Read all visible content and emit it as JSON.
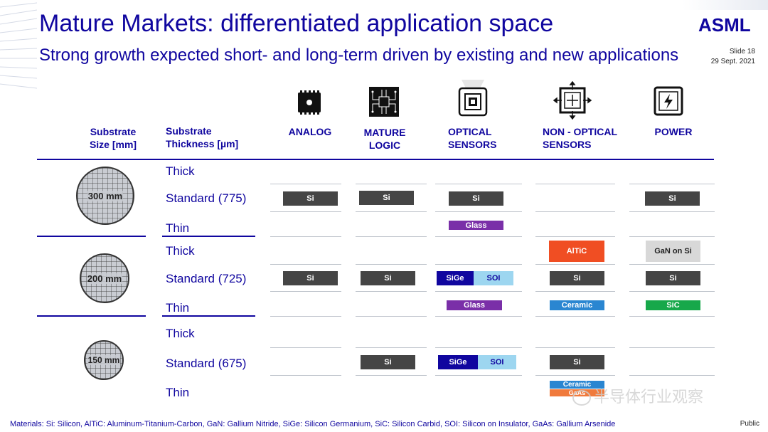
{
  "header": {
    "title": "Mature Markets: differentiated application space",
    "subtitle": "Strong growth expected short- and long-term driven by existing and new applications",
    "logo": "ASML",
    "slide_number": "Slide 18",
    "date": "29 Sept. 2021"
  },
  "columns": {
    "substrate_size": "Substrate Size [mm]",
    "substrate_thickness": "Substrate Thickness [µm]",
    "analog": "ANALOG",
    "mature_logic": "MATURE LOGIC",
    "optical_sensors": "OPTICAL SENSORS",
    "non_optical_sensors": "NON - OPTICAL SENSORS",
    "power": "POWER"
  },
  "icons": [
    "chip-icon",
    "logic-chip-icon",
    "optical-sensor-icon",
    "motion-sensor-icon",
    "power-icon"
  ],
  "groups": [
    {
      "wafer": "300 mm",
      "thick": "Thick",
      "standard": "Standard (775)",
      "thin": "Thin"
    },
    {
      "wafer": "200 mm",
      "thick": "Thick",
      "standard": "Standard (725)",
      "thin": "Thin"
    },
    {
      "wafer": "150 mm",
      "thick": "Thick",
      "standard": "Standard (675)",
      "thin": "Thin"
    }
  ],
  "materials": {
    "si": "Si",
    "glass": "Glass",
    "altic": "AlTiC",
    "gan_on_si": "GaN on Si",
    "sige": "SiGe",
    "soi": "SOI",
    "ceramic": "Ceramic",
    "sic": "SiC",
    "gaas": "GaAs"
  },
  "colors": {
    "brand": "#10069f",
    "si": "#454545",
    "glass": "#7a2fa8",
    "altic": "#f04e23",
    "gan_on_si": "#d8d8d8",
    "sige": "#10069f",
    "soi": "#9dd6f0",
    "ceramic": "#2a86d1",
    "sic": "#17a84a",
    "gaas": "#f07a3c"
  },
  "footer": {
    "legend": "Materials: Si: Silicon, AlTiC: Aluminum-Titanium-Carbon, GaN: Gallium Nitride, SiGe: Silicon Germanium, SiC: Silicon Carbid, SOI: Silicon on Insulator, GaAs: Gallium Arsenide",
    "classification": "Public",
    "watermark": "半导体行业观察"
  }
}
